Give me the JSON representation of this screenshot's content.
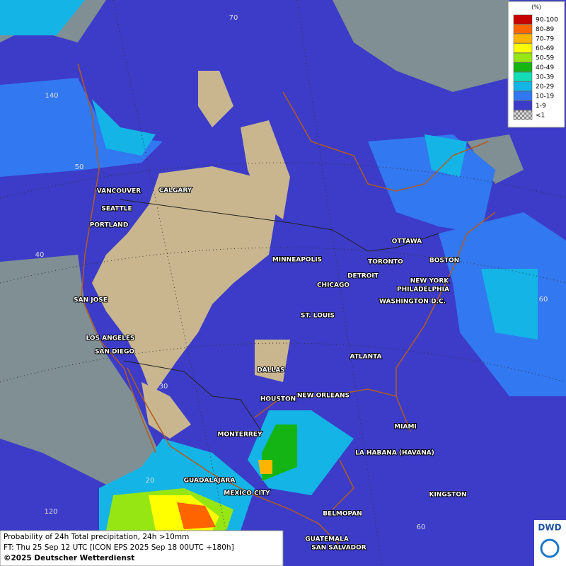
{
  "legend": {
    "title": "(%)",
    "items": [
      {
        "label": "90-100",
        "color": "#c80000"
      },
      {
        "label": "80-89",
        "color": "#ff6400"
      },
      {
        "label": "70-79",
        "color": "#ffb400"
      },
      {
        "label": "60-69",
        "color": "#ffff00"
      },
      {
        "label": "50-59",
        "color": "#96e614"
      },
      {
        "label": "40-49",
        "color": "#14b414"
      },
      {
        "label": "30-39",
        "color": "#14dcb4"
      },
      {
        "label": "20-29",
        "color": "#14b4e6"
      },
      {
        "label": "10-19",
        "color": "#3278f0"
      },
      {
        "label": "1-9",
        "color": "#3c3cc8"
      },
      {
        "label": "<1",
        "color": "checker"
      }
    ]
  },
  "cities": [
    "VANCOUVER",
    "CALGARY",
    "SEATTLE",
    "PORTLAND",
    "MINNEAPOLIS",
    "OTTAWA",
    "TORONTO",
    "DETROIT",
    "BOSTON",
    "CHICAGO",
    "NEW YORK",
    "PHILADELPHIA",
    "WASHINGTON D.C.",
    "SAN JOSE",
    "ST. LOUIS",
    "LOS ANGELES",
    "SAN DIEGO",
    "ATLANTA",
    "DALLAS",
    "HOUSTON",
    "NEW ORLEANS",
    "MIAMI",
    "MONTERREY",
    "LA HABANA (HAVANA)",
    "GUADALAJARA",
    "MEXICO CITY",
    "KINGSTON",
    "BELMOPAN",
    "GUATEMALA",
    "SAN SALVADOR"
  ],
  "graticule_labels": [
    "70",
    "140",
    "50",
    "40",
    "60",
    "30",
    "20",
    "120",
    "60"
  ],
  "caption": [
    "Probability of 24h Total precipitation, 24h >10mm",
    "FT: Thu 25 Sep 12 UTC [ICON EPS 2025 Sep 18 00UTC +180h]",
    "©2025 Deutscher Wetterdienst"
  ],
  "logo": "DWD"
}
